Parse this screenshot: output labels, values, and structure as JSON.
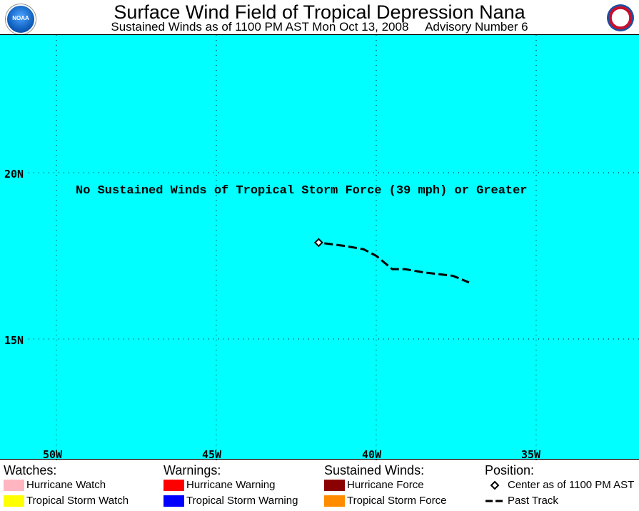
{
  "header": {
    "title": "Surface Wind Field of Tropical Depression Nana",
    "subtitle": "Sustained Winds as of 1100 PM AST Mon Oct 13, 2008     Advisory Number 6",
    "left_logo": {
      "icon": "noaa-logo-icon",
      "text": "NOAA"
    },
    "right_logo": {
      "icon": "nws-logo-icon"
    }
  },
  "map": {
    "background_color": "#00ffff",
    "notice": "No Sustained Winds of Tropical Storm Force (39 mph) or Greater",
    "lat_labels": [
      "20N",
      "15N"
    ],
    "lon_labels": [
      "50W",
      "45W",
      "40W",
      "35W"
    ],
    "gridlines": "dotted"
  },
  "storm": {
    "center": {
      "lon": -41.8,
      "lat": 17.9
    },
    "past_track": [
      {
        "lon": -41.8,
        "lat": 17.9
      },
      {
        "lon": -41.0,
        "lat": 17.8
      },
      {
        "lon": -40.4,
        "lat": 17.7
      },
      {
        "lon": -40.0,
        "lat": 17.5
      },
      {
        "lon": -39.5,
        "lat": 17.1
      },
      {
        "lon": -39.1,
        "lat": 17.1
      },
      {
        "lon": -38.5,
        "lat": 17.0
      },
      {
        "lon": -37.6,
        "lat": 16.9
      },
      {
        "lon": -37.1,
        "lat": 16.7
      }
    ]
  },
  "legend": {
    "watches": {
      "heading": "Watches:",
      "items": [
        {
          "label": "Hurricane Watch",
          "color": "#ffb6c1"
        },
        {
          "label": "Tropical Storm Watch",
          "color": "#ffff00"
        }
      ]
    },
    "warnings": {
      "heading": "Warnings:",
      "items": [
        {
          "label": "Hurricane Warning",
          "color": "#ff0000"
        },
        {
          "label": "Tropical Storm Warning",
          "color": "#0000ff"
        }
      ]
    },
    "winds": {
      "heading": "Sustained Winds:",
      "items": [
        {
          "label": "Hurricane Force",
          "color": "#8b0000"
        },
        {
          "label": "Tropical Storm Force",
          "color": "#ff8c00"
        }
      ]
    },
    "position": {
      "heading": "Position:",
      "items": [
        {
          "label": "Center as of 1100 PM AST",
          "icon": "diamond-icon"
        },
        {
          "label": "Past Track",
          "icon": "dashed-line-icon"
        }
      ]
    }
  }
}
